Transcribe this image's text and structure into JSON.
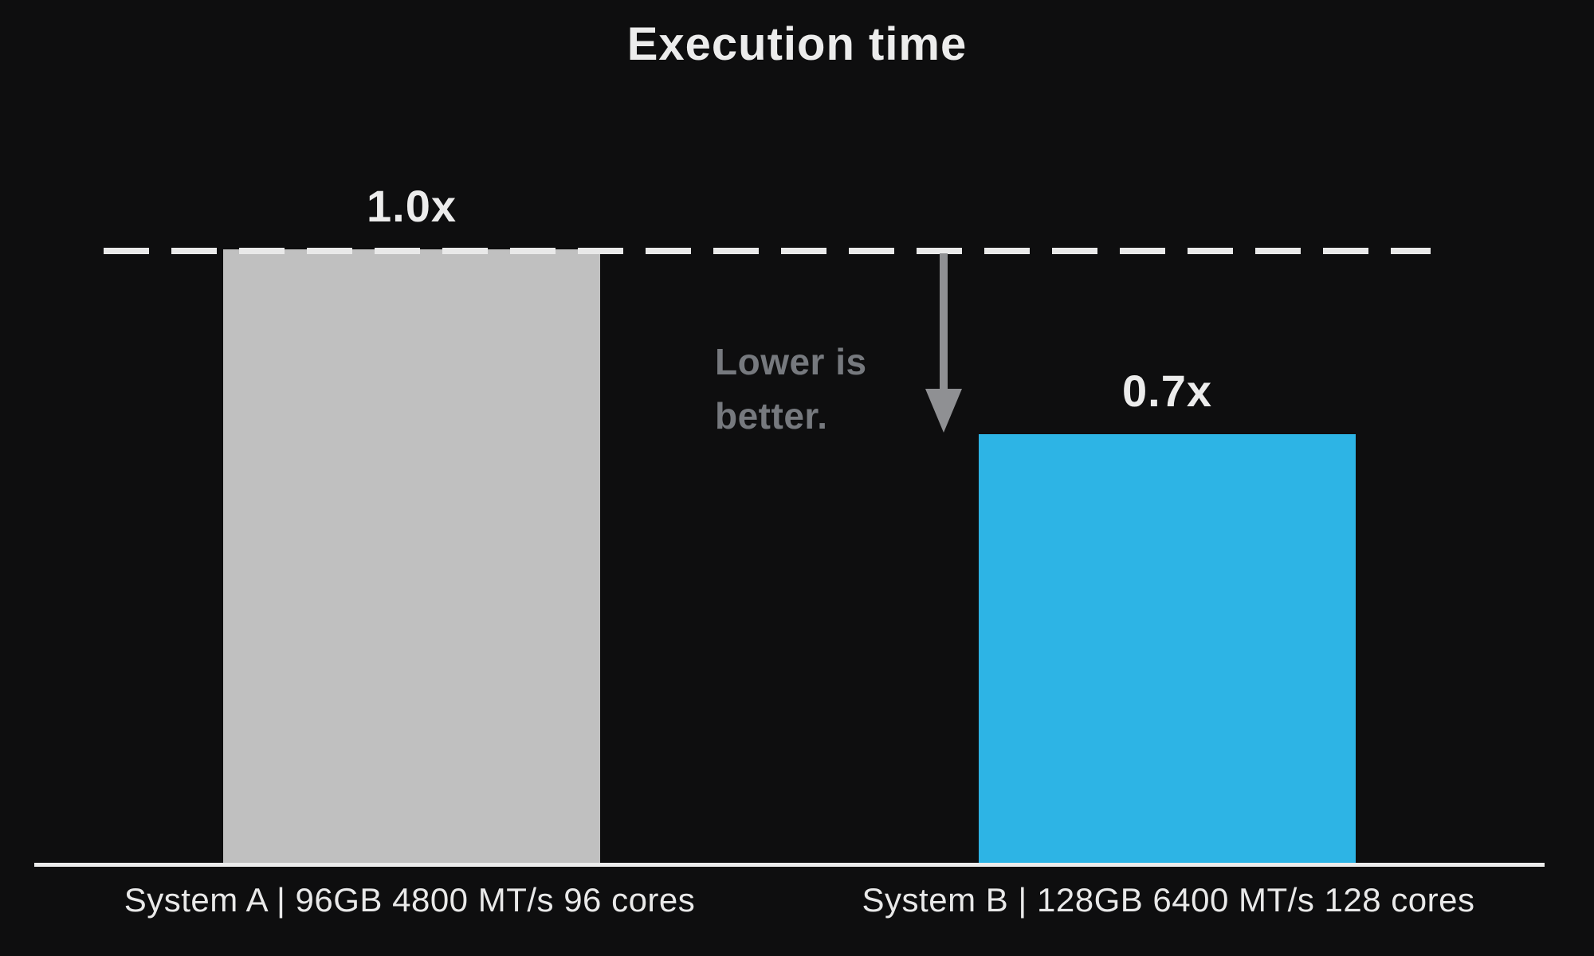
{
  "chart_data": {
    "type": "bar",
    "title": "Execution time",
    "categories": [
      "System A | 96GB 4800 MT/s 96 cores",
      "System B | 128GB 6400 MT/s 128 cores"
    ],
    "values": [
      1.0,
      0.7
    ],
    "value_labels": [
      "1.0x",
      "0.7x"
    ],
    "baseline": {
      "value": 1.0,
      "style": "dashed-line",
      "label": "1.0x"
    },
    "annotation_text": "Lower is better.",
    "annotation_lines": [
      "Lower is",
      "better."
    ],
    "xlabel": "",
    "ylabel": "",
    "ylim": [
      0,
      1.17
    ],
    "grid": "off",
    "legend": "none",
    "bar_colors": [
      "#c0c0c0",
      "#2db4e5"
    ],
    "colors": {
      "background": "#0e0e0f",
      "bar_system_a": "#c0c0c0",
      "bar_system_b": "#2db4e5",
      "title_text": "#ececec",
      "axis_line": "#ececec",
      "dashed_line": "#e9e9e9",
      "annotation_text": "#76797e",
      "arrow": "#8f9093"
    },
    "icons": {
      "down_arrow": "down-arrow-icon"
    }
  }
}
